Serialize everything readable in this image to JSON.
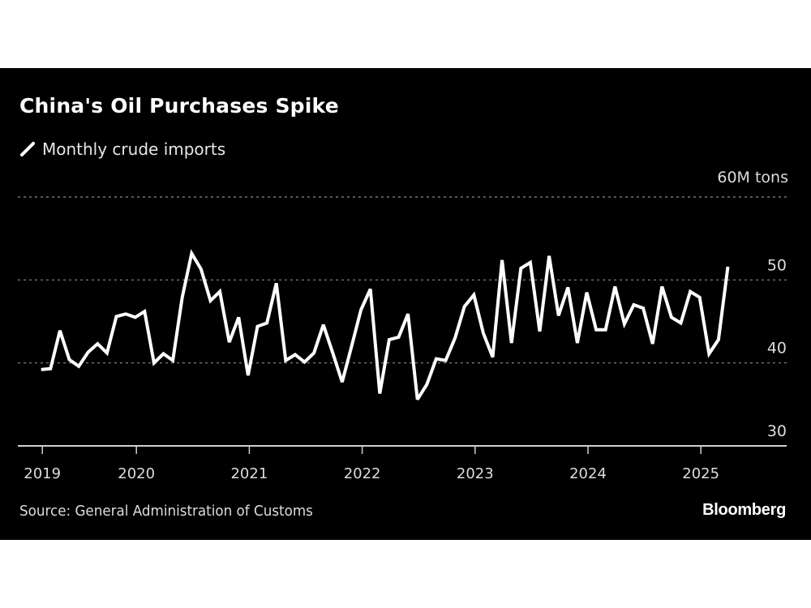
{
  "chart_data": {
    "type": "line",
    "title": "China's Oil Purchases Spike",
    "legend": [
      "Monthly crude imports"
    ],
    "legend_position": "top-left",
    "unit_label": "60M tons",
    "xlabel": "",
    "ylabel": "Million tons",
    "ylim": [
      30,
      60
    ],
    "y_ticks": [
      30,
      40,
      50,
      60
    ],
    "y_tick_labels": [
      "30",
      "40",
      "50",
      "60M tons"
    ],
    "grid": true,
    "x_tick_labels": [
      "2019",
      "2020",
      "2021",
      "2022",
      "2023",
      "2024",
      "2025"
    ],
    "x_start": "2019-03",
    "x_end": "2025-04",
    "series": [
      {
        "name": "Monthly crude imports",
        "color": "#ffffff",
        "values": [
          39.2,
          39.3,
          43.9,
          40.4,
          39.6,
          41.3,
          42.3,
          41.2,
          45.6,
          45.9,
          45.5,
          46.2,
          40.0,
          41.1,
          40.3,
          47.9,
          53.2,
          51.3,
          47.5,
          48.6,
          42.5,
          45.5,
          38.5,
          44.4,
          44.8,
          49.6,
          40.3,
          41.0,
          40.1,
          41.2,
          44.6,
          41.2,
          37.7,
          42.0,
          46.4,
          48.9,
          36.3,
          42.8,
          43.1,
          45.9,
          35.6,
          37.4,
          40.5,
          40.3,
          43.0,
          46.8,
          48.2,
          43.6,
          40.7,
          52.4,
          42.4,
          51.4,
          52.1,
          43.8,
          52.9,
          45.7,
          49.1,
          42.4,
          48.5,
          44.0,
          44.0,
          49.2,
          44.7,
          47.0,
          46.6,
          42.3,
          49.2,
          45.5,
          44.8,
          48.6,
          47.9,
          41.1,
          42.8,
          51.6
        ]
      }
    ],
    "source": "Source: General Administration of Customs",
    "brand": "Bloomberg"
  }
}
